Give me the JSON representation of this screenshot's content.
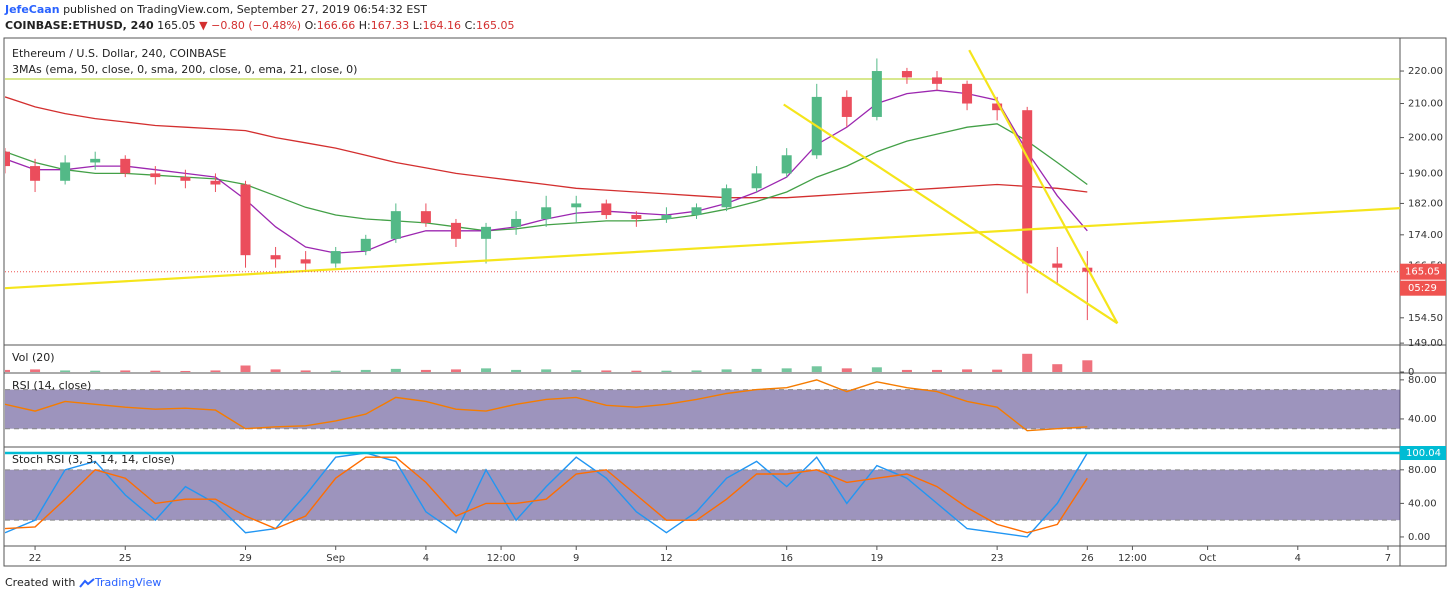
{
  "header": {
    "author": "JefeCaan",
    "published": "published on TradingView.com, September 27, 2019 06:54:32 EST",
    "symbol": "COINBASE:ETHUSD, 240",
    "last": 165.05,
    "arrow": "▼",
    "change": "−0.80 (−0.48%)",
    "ohlc": [
      {
        "label": "O:",
        "value": 166.66
      },
      {
        "label": "H:",
        "value": 167.33
      },
      {
        "label": "L:",
        "value": 164.16
      },
      {
        "label": "C:",
        "value": 165.05
      }
    ]
  },
  "chart_data": [
    {
      "type": "candlestick",
      "title": "Ethereum / U.S. Dollar, 240, COINBASE",
      "subtitle": "3MAs (ema, 50, close, 0, sma, 200, close, 0, ema, 21, close, 0)",
      "x": [
        -1,
        0,
        1,
        2,
        3,
        4,
        5,
        6,
        7,
        8,
        9,
        10,
        11,
        12,
        13,
        14,
        15,
        16,
        17,
        18,
        19,
        20,
        21,
        22,
        23,
        24,
        25,
        26,
        27,
        28,
        29,
        30,
        31,
        32,
        33,
        34,
        35
      ],
      "open": [
        196,
        192,
        188,
        193,
        194,
        190,
        189,
        188,
        187,
        169,
        168,
        167,
        170,
        173,
        180,
        177,
        173,
        176,
        178,
        181,
        182,
        179,
        178,
        179,
        181,
        186,
        190,
        195,
        212,
        206,
        220,
        218,
        216,
        210,
        208,
        167,
        166
      ],
      "high": [
        197,
        194,
        195,
        196,
        195,
        192,
        191,
        190,
        188,
        171,
        170,
        171,
        174,
        182,
        182,
        178,
        177,
        180,
        184,
        184,
        183,
        180,
        181,
        182,
        187,
        192,
        197,
        216,
        214,
        224,
        221,
        220,
        217,
        212,
        209,
        171,
        170
      ],
      "low": [
        190,
        185,
        187,
        191,
        189,
        187,
        186,
        185,
        166,
        166,
        165,
        166,
        169,
        172,
        176,
        171,
        167,
        174,
        176,
        177,
        178,
        176,
        177,
        178,
        180,
        185,
        189,
        194,
        203,
        205,
        216,
        214,
        208,
        205,
        160,
        162,
        154
      ],
      "close": [
        192,
        188,
        193,
        194,
        190,
        189,
        188,
        187,
        169,
        168,
        167,
        170,
        173,
        180,
        177,
        173,
        176,
        178,
        181,
        182,
        179,
        178,
        179,
        181,
        186,
        190,
        195,
        212,
        206,
        220,
        218,
        216,
        210,
        208,
        167,
        166,
        165.05
      ],
      "up_color": "#53b987",
      "down_color": "#eb4d5c",
      "overlays": [
        {
          "color": "#d32f2f",
          "values": [
            212,
            209,
            207,
            205.5,
            204.5,
            203.5,
            203,
            202.5,
            202,
            200,
            198.5,
            197,
            195,
            193,
            191.5,
            190,
            189,
            188,
            187,
            186,
            185.5,
            185,
            184.5,
            184,
            183.5,
            183.5,
            183.5,
            184,
            184.5,
            185,
            185.5,
            186,
            186.5,
            187,
            186.5,
            186,
            185
          ]
        },
        {
          "color": "#43a047",
          "values": [
            196,
            193,
            191,
            190,
            190,
            189.5,
            189,
            188.5,
            187,
            184,
            181,
            179,
            178,
            177.5,
            177,
            176,
            175,
            175.5,
            176.5,
            177,
            177.5,
            177.5,
            178,
            179,
            180.5,
            182.5,
            185,
            189,
            192,
            196,
            199,
            201,
            203,
            204,
            199,
            193,
            187
          ]
        },
        {
          "color": "#9c27b0",
          "values": [
            194,
            191,
            191,
            192,
            192,
            191,
            190,
            189,
            183,
            176,
            171,
            169.5,
            170,
            173,
            175,
            175,
            175,
            176,
            178,
            179.5,
            180,
            179.5,
            179,
            180,
            182,
            185,
            189,
            198,
            203,
            210,
            213,
            214,
            213,
            211,
            196,
            184,
            175
          ]
        }
      ],
      "log_scale": true,
      "xlim": [
        -1,
        45.4
      ],
      "ylim": [
        148.6,
        230
      ],
      "yticks": [
        {
          "value": 220,
          "label": "220.00"
        },
        {
          "value": 210,
          "label": "210.00"
        },
        {
          "value": 200,
          "label": "200.00"
        },
        {
          "value": 190,
          "label": "190.00"
        },
        {
          "value": 182,
          "label": "182.00"
        },
        {
          "value": 174,
          "label": "174.00"
        },
        {
          "value": 166.5,
          "label": "166.50"
        },
        {
          "value": 154.5,
          "label": "154.50"
        },
        {
          "value": 149,
          "label": "149.00"
        }
      ],
      "level_lines": [
        {
          "y": 217.5,
          "color": "#c0d94a"
        }
      ],
      "trendlines": [
        {
          "x": [
            -1,
            45.4
          ],
          "y": [
            161.2,
            180.8
          ],
          "color": "#f5e51b"
        },
        {
          "x": [
            24.9,
            36
          ],
          "y": [
            209.7,
            153.3
          ],
          "color": "#f5e51b"
        },
        {
          "x": [
            31.07,
            36
          ],
          "y": [
            226.7,
            153.3
          ],
          "color": "#f5e51b"
        }
      ],
      "last_price": 165.05,
      "last_price_color": "#ef5350",
      "countdown": "05:29"
    },
    {
      "type": "bar",
      "title": "Vol (20)",
      "x": [
        -1,
        0,
        1,
        2,
        3,
        4,
        5,
        6,
        7,
        8,
        9,
        10,
        11,
        12,
        13,
        14,
        15,
        16,
        17,
        18,
        19,
        20,
        21,
        22,
        23,
        24,
        25,
        26,
        27,
        28,
        29,
        30,
        31,
        32,
        33,
        34,
        35
      ],
      "values": [
        8,
        10,
        6,
        5,
        6,
        5,
        4,
        6,
        25,
        10,
        6,
        5,
        8,
        12,
        8,
        10,
        14,
        8,
        10,
        7,
        6,
        5,
        5,
        6,
        10,
        12,
        14,
        22,
        14,
        18,
        8,
        8,
        10,
        9,
        70,
        30,
        45
      ],
      "colors": [
        "#eb4d5c",
        "#eb4d5c",
        "#53b987",
        "#53b987",
        "#eb4d5c",
        "#eb4d5c",
        "#eb4d5c",
        "#eb4d5c",
        "#eb4d5c",
        "#eb4d5c",
        "#eb4d5c",
        "#53b987",
        "#53b987",
        "#53b987",
        "#eb4d5c",
        "#eb4d5c",
        "#53b987",
        "#53b987",
        "#53b987",
        "#53b987",
        "#eb4d5c",
        "#eb4d5c",
        "#53b987",
        "#53b987",
        "#53b987",
        "#53b987",
        "#53b987",
        "#53b987",
        "#eb4d5c",
        "#53b987",
        "#eb4d5c",
        "#eb4d5c",
        "#eb4d5c",
        "#eb4d5c",
        "#eb4d5c",
        "#eb4d5c",
        "#eb4d5c"
      ],
      "xlim": [
        -1,
        45.4
      ],
      "ylim": [
        0,
        100
      ],
      "yticks": [
        0
      ]
    },
    {
      "type": "line",
      "title": "RSI (14, close)",
      "x": [
        -1,
        0,
        1,
        2,
        3,
        4,
        5,
        6,
        7,
        8,
        9,
        10,
        11,
        12,
        13,
        14,
        15,
        16,
        17,
        18,
        19,
        20,
        21,
        22,
        23,
        24,
        25,
        26,
        27,
        28,
        29,
        30,
        31,
        32,
        33,
        34,
        35
      ],
      "series": [
        {
          "color": "#f57c00",
          "values": [
            55,
            48,
            58,
            55,
            52,
            50,
            51,
            49,
            30,
            32,
            33,
            38,
            45,
            62,
            58,
            50,
            48,
            55,
            60,
            62,
            54,
            52,
            55,
            60,
            66,
            70,
            72,
            80,
            68,
            78,
            72,
            68,
            58,
            52,
            28,
            30,
            32
          ]
        }
      ],
      "band": [
        30,
        70
      ],
      "band_color": "#4c3d87",
      "hlines": [
        70,
        30
      ],
      "xlim": [
        -1,
        45.4
      ],
      "ylim": [
        12.3,
        86
      ],
      "yticks": [
        {
          "value": 80,
          "label": "80.00"
        },
        {
          "value": 40,
          "label": "40.00"
        }
      ]
    },
    {
      "type": "line",
      "title": "Stoch RSI (3, 3, 14, 14, close)",
      "x": [
        -1,
        0,
        1,
        2,
        3,
        4,
        5,
        6,
        7,
        8,
        9,
        10,
        11,
        12,
        13,
        14,
        15,
        16,
        17,
        18,
        19,
        20,
        21,
        22,
        23,
        24,
        25,
        26,
        27,
        28,
        29,
        30,
        31,
        32,
        33,
        34,
        35
      ],
      "series": [
        {
          "color": "#2196f3",
          "values": [
            5,
            20,
            80,
            90,
            50,
            20,
            60,
            40,
            5,
            10,
            50,
            95,
            100,
            90,
            30,
            5,
            80,
            20,
            60,
            95,
            70,
            30,
            5,
            30,
            70,
            90,
            60,
            95,
            40,
            85,
            70,
            40,
            10,
            5,
            0,
            40,
            100
          ]
        },
        {
          "color": "#ff6d00",
          "values": [
            10,
            12,
            45,
            80,
            70,
            40,
            45,
            45,
            25,
            10,
            25,
            70,
            95,
            95,
            65,
            25,
            40,
            40,
            45,
            75,
            80,
            50,
            20,
            20,
            45,
            75,
            75,
            80,
            65,
            70,
            75,
            60,
            35,
            15,
            5,
            15,
            70
          ]
        }
      ],
      "band": [
        20,
        80
      ],
      "band_color": "#4c3d87",
      "hlines": [
        80,
        20
      ],
      "last_value": 100.04,
      "last_value_color": "#00bcd4",
      "xlim": [
        -1,
        45.4
      ],
      "ylim": [
        -9.6,
        106
      ],
      "yticks": [
        {
          "value": 80,
          "label": "80.00"
        },
        {
          "value": 40,
          "label": "40.00"
        },
        {
          "value": 0,
          "label": "0.00"
        }
      ],
      "xticks": [
        {
          "value": 0,
          "label": "22"
        },
        {
          "value": 3,
          "label": "25"
        },
        {
          "value": 7,
          "label": "29"
        },
        {
          "value": 10,
          "label": "Sep"
        },
        {
          "value": 13,
          "label": "4"
        },
        {
          "value": 15.5,
          "label": "12:00"
        },
        {
          "value": 18,
          "label": "9"
        },
        {
          "value": 21,
          "label": "12"
        },
        {
          "value": 25,
          "label": "16"
        },
        {
          "value": 28,
          "label": "19"
        },
        {
          "value": 32,
          "label": "23"
        },
        {
          "value": 35,
          "label": "26"
        },
        {
          "value": 36.5,
          "label": "12:00"
        },
        {
          "value": 39,
          "label": "Oct"
        },
        {
          "value": 42,
          "label": "4"
        },
        {
          "value": 45,
          "label": "7"
        }
      ]
    }
  ],
  "footer": {
    "created": "Created with",
    "brand": "TradingView"
  }
}
